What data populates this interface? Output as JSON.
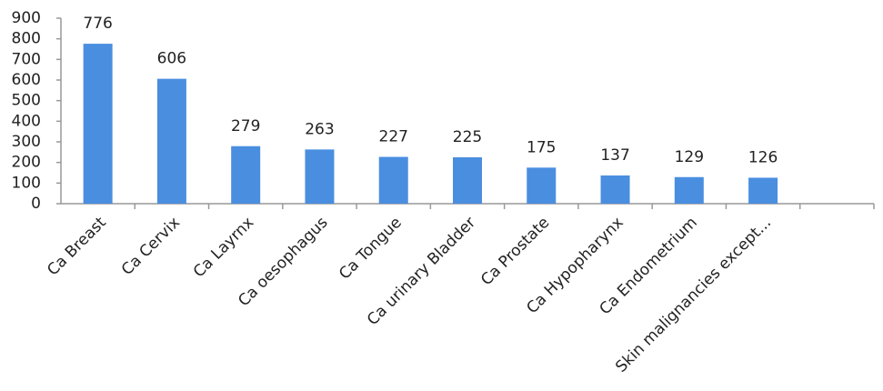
{
  "chart_data": {
    "type": "bar",
    "categories": [
      "Ca Breast",
      "Ca Cervix",
      "Ca Layrnx",
      "Ca oesophagus",
      "Ca Tongue",
      "Ca urinary Bladder",
      "Ca Prostate",
      "Ca Hypopharynx",
      "Ca Endometrium",
      "Skin malignancies except...",
      null
    ],
    "values": [
      776,
      606,
      279,
      263,
      227,
      225,
      175,
      137,
      129,
      126,
      null
    ],
    "color": "#4a8ee0",
    "ylim": [
      0,
      900
    ],
    "yticks": [
      0,
      100,
      200,
      300,
      400,
      500,
      600,
      700,
      800,
      900
    ],
    "grid": false
  }
}
